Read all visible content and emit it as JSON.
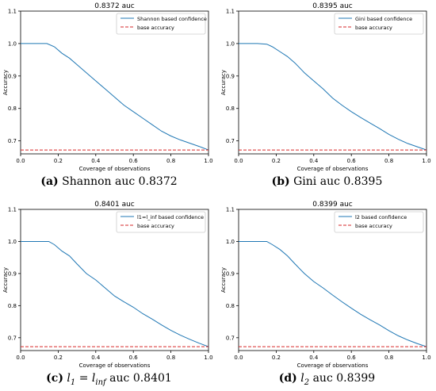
{
  "colors": {
    "series": "#1f77b4",
    "baseline": "#d62728"
  },
  "chart_data": [
    {
      "type": "line",
      "title": "0.8372 auc",
      "xlabel": "Coverage of observations",
      "ylabel": "Accuracy",
      "xlim": [
        0,
        1
      ],
      "ylim": [
        0.66,
        1.1
      ],
      "xticks": [
        "0.0",
        "0.2",
        "0.4",
        "0.6",
        "0.8",
        "1.0"
      ],
      "yticks": [
        "0.7",
        "0.8",
        "0.9",
        "1.0",
        "1.1"
      ],
      "grid": false,
      "legend_position": "top-right",
      "series": [
        {
          "name": "Shannon based confidence",
          "x": [
            0,
            0.05,
            0.1,
            0.14,
            0.18,
            0.22,
            0.26,
            0.3,
            0.35,
            0.4,
            0.45,
            0.5,
            0.55,
            0.6,
            0.65,
            0.7,
            0.75,
            0.8,
            0.85,
            0.9,
            0.95,
            1.0
          ],
          "y": [
            1.0,
            1.0,
            1.0,
            1.0,
            0.99,
            0.97,
            0.955,
            0.935,
            0.91,
            0.885,
            0.86,
            0.835,
            0.81,
            0.79,
            0.77,
            0.75,
            0.73,
            0.715,
            0.703,
            0.693,
            0.683,
            0.672
          ]
        },
        {
          "name": "base accuracy",
          "x": [
            0,
            1
          ],
          "y": [
            0.672,
            0.672
          ]
        }
      ]
    },
    {
      "type": "line",
      "title": "0.8395 auc",
      "xlabel": "Coverage of observations",
      "ylabel": "Accuracy",
      "xlim": [
        0,
        1
      ],
      "ylim": [
        0.66,
        1.1
      ],
      "xticks": [
        "0.0",
        "0.2",
        "0.4",
        "0.6",
        "0.8",
        "1.0"
      ],
      "yticks": [
        "0.7",
        "0.8",
        "0.9",
        "1.0",
        "1.1"
      ],
      "grid": false,
      "legend_position": "top-right",
      "series": [
        {
          "name": "Gini based confidence",
          "x": [
            0,
            0.05,
            0.1,
            0.15,
            0.18,
            0.22,
            0.26,
            0.3,
            0.35,
            0.4,
            0.45,
            0.5,
            0.55,
            0.6,
            0.65,
            0.7,
            0.75,
            0.8,
            0.85,
            0.9,
            0.95,
            1.0
          ],
          "y": [
            1.0,
            1.0,
            1.0,
            0.998,
            0.99,
            0.975,
            0.96,
            0.94,
            0.91,
            0.885,
            0.86,
            0.832,
            0.81,
            0.79,
            0.772,
            0.755,
            0.738,
            0.72,
            0.705,
            0.692,
            0.682,
            0.672
          ]
        },
        {
          "name": "base accuracy",
          "x": [
            0,
            1
          ],
          "y": [
            0.672,
            0.672
          ]
        }
      ]
    },
    {
      "type": "line",
      "title": "0.8401 auc",
      "xlabel": "Coverage of observations",
      "ylabel": "Accuracy",
      "xlim": [
        0,
        1
      ],
      "ylim": [
        0.66,
        1.1
      ],
      "xticks": [
        "0.0",
        "0.2",
        "0.4",
        "0.6",
        "0.8",
        "1.0"
      ],
      "yticks": [
        "0.7",
        "0.8",
        "0.9",
        "1.0",
        "1.1"
      ],
      "grid": false,
      "legend_position": "top-right",
      "series": [
        {
          "name": "l1=l_inf based confidence",
          "x": [
            0,
            0.05,
            0.1,
            0.15,
            0.18,
            0.22,
            0.26,
            0.3,
            0.35,
            0.4,
            0.45,
            0.5,
            0.55,
            0.6,
            0.65,
            0.7,
            0.75,
            0.8,
            0.85,
            0.9,
            0.95,
            1.0
          ],
          "y": [
            1.0,
            1.0,
            1.0,
            1.0,
            0.99,
            0.97,
            0.955,
            0.93,
            0.9,
            0.88,
            0.855,
            0.83,
            0.812,
            0.795,
            0.775,
            0.758,
            0.74,
            0.723,
            0.708,
            0.695,
            0.683,
            0.672
          ]
        },
        {
          "name": "base accuracy",
          "x": [
            0,
            1
          ],
          "y": [
            0.672,
            0.672
          ]
        }
      ]
    },
    {
      "type": "line",
      "title": "0.8399 auc",
      "xlabel": "Coverage of observations",
      "ylabel": "Accuracy",
      "xlim": [
        0,
        1
      ],
      "ylim": [
        0.66,
        1.1
      ],
      "xticks": [
        "0.0",
        "0.2",
        "0.4",
        "0.6",
        "0.8",
        "1.0"
      ],
      "yticks": [
        "0.7",
        "0.8",
        "0.9",
        "1.0",
        "1.1"
      ],
      "grid": false,
      "legend_position": "top-right",
      "series": [
        {
          "name": "l2 based confidence",
          "x": [
            0,
            0.05,
            0.1,
            0.15,
            0.18,
            0.22,
            0.26,
            0.3,
            0.35,
            0.4,
            0.45,
            0.5,
            0.55,
            0.6,
            0.65,
            0.7,
            0.75,
            0.8,
            0.85,
            0.9,
            0.95,
            1.0
          ],
          "y": [
            1.0,
            1.0,
            1.0,
            1.0,
            0.99,
            0.975,
            0.955,
            0.93,
            0.9,
            0.875,
            0.855,
            0.833,
            0.812,
            0.792,
            0.773,
            0.756,
            0.74,
            0.722,
            0.706,
            0.693,
            0.682,
            0.672
          ]
        },
        {
          "name": "base accuracy",
          "x": [
            0,
            1
          ],
          "y": [
            0.672,
            0.672
          ]
        }
      ]
    }
  ],
  "captions": [
    {
      "label": "(a)",
      "pre": "",
      "sub1": "",
      "mid": "",
      "sub2": "",
      "text": "Shannon auc 0.8372"
    },
    {
      "label": "(b)",
      "pre": "",
      "sub1": "",
      "mid": "",
      "sub2": "",
      "text": "Gini auc 0.8395"
    },
    {
      "label": "(c)",
      "pre": "l",
      "sub1": "1",
      "mid": " = l",
      "sub2": "inf",
      "text": "auc 0.8401"
    },
    {
      "label": "(d)",
      "pre": "l",
      "sub1": "2",
      "mid": "",
      "sub2": "",
      "text": "auc 0.8399"
    }
  ]
}
